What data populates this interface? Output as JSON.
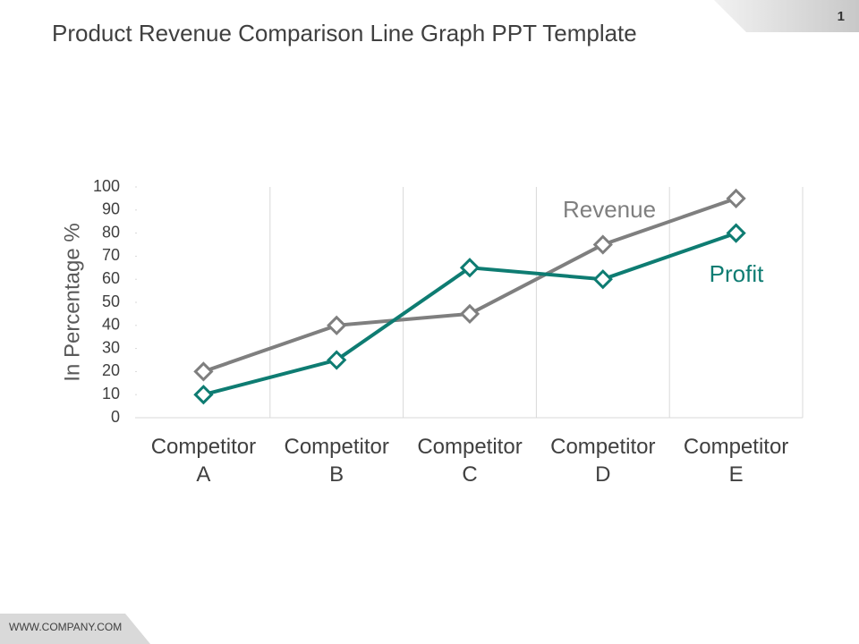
{
  "page_number": "1",
  "footer": "WWW.COMPANY.COM",
  "chart_data": {
    "type": "line",
    "title": "Product Revenue Comparison Line Graph PPT Template",
    "y_label": "In Percentage %",
    "categories": [
      "Competitor A",
      "Competitor B",
      "Competitor C",
      "Competitor D",
      "Competitor E"
    ],
    "series": [
      {
        "name": "Revenue",
        "color": "#7f7f7f",
        "values": [
          20,
          40,
          45,
          75,
          95
        ]
      },
      {
        "name": "Profit",
        "color": "#0e7c72",
        "values": [
          10,
          25,
          65,
          60,
          80
        ]
      }
    ],
    "ylim": [
      0,
      100
    ],
    "yticks": [
      0,
      10,
      20,
      30,
      40,
      50,
      60,
      70,
      80,
      90,
      100
    ]
  }
}
